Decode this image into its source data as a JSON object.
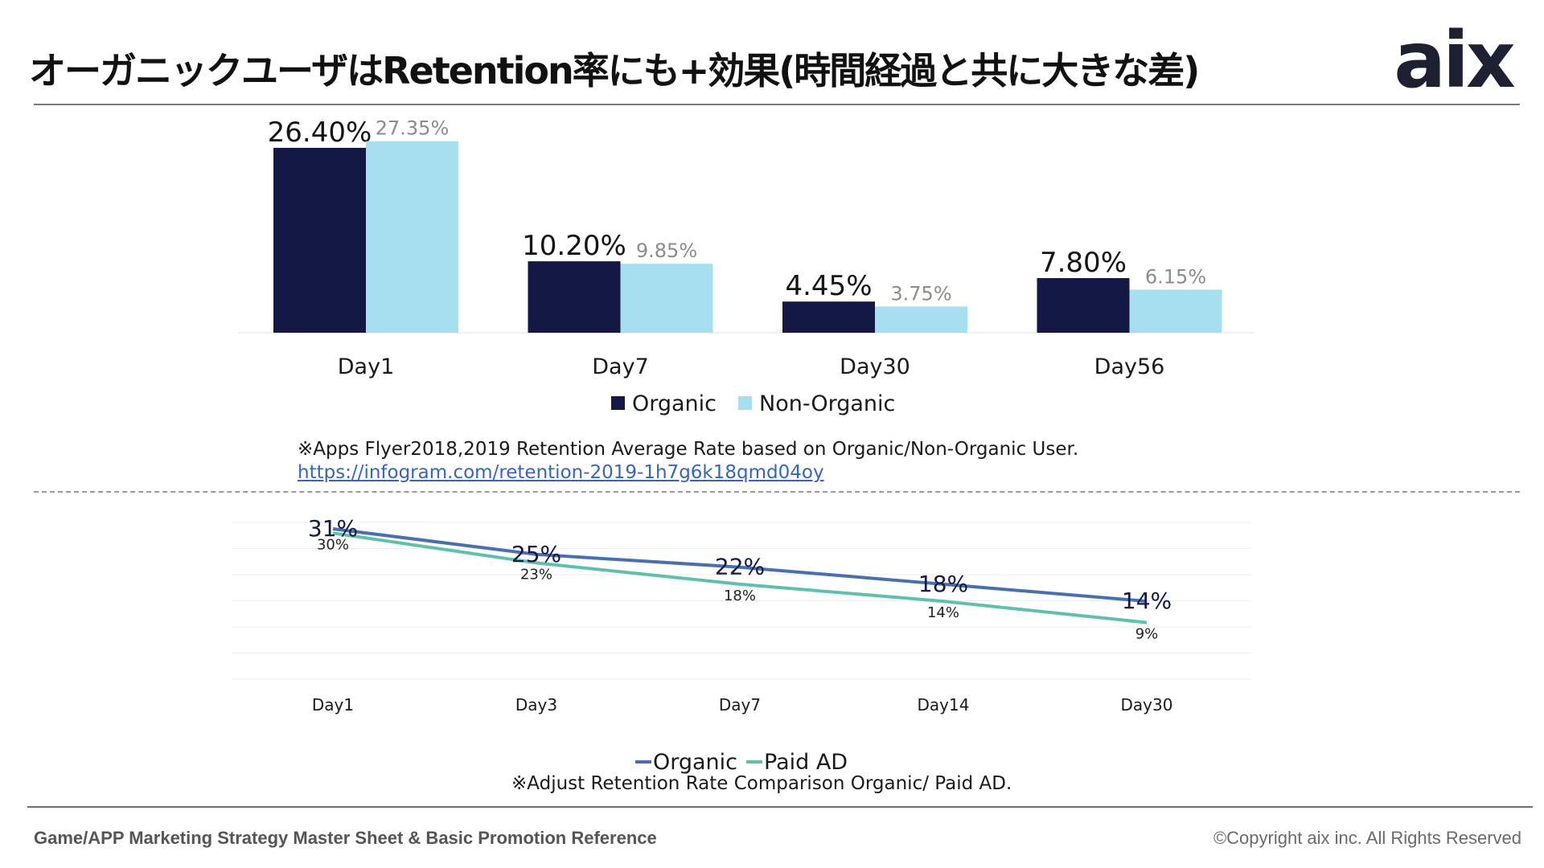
{
  "title": "オーガニックユーザはRetention率にも+効果(時間経過と共に大きな差)",
  "logo_text": "aix",
  "colors": {
    "organic_bar": "#141845",
    "non_organic_bar": "#a6dff0",
    "organic_line": "#4a6fb0",
    "paid_line": "#5fc0ae",
    "rule": "#7a7a7a"
  },
  "chart_data": [
    {
      "type": "bar",
      "categories": [
        "Day1",
        "Day7",
        "Day30",
        "Day56"
      ],
      "series": [
        {
          "name": "Organic",
          "values": [
            26.4,
            10.2,
            4.45,
            7.8
          ],
          "labels": [
            "26.40%",
            "10.20%",
            "4.45%",
            "7.80%"
          ]
        },
        {
          "name": "Non-Organic",
          "values": [
            27.35,
            9.85,
            3.75,
            6.15
          ],
          "labels": [
            "27.35%",
            "9.85%",
            "3.75%",
            "6.15%"
          ]
        }
      ],
      "ylim": [
        0,
        28
      ],
      "legend_position": "bottom",
      "grid": false
    },
    {
      "type": "line",
      "categories": [
        "Day1",
        "Day3",
        "Day7",
        "Day14",
        "Day30"
      ],
      "series": [
        {
          "name": "Organic",
          "values": [
            31,
            25,
            22,
            18,
            14
          ],
          "labels": [
            "31%",
            "25%",
            "22%",
            "18%",
            "14%"
          ]
        },
        {
          "name": "Paid AD",
          "values": [
            30,
            23,
            18,
            14,
            9
          ],
          "labels": [
            "30%",
            "23%",
            "18%",
            "14%",
            "9%"
          ]
        }
      ],
      "ylim": [
        0,
        35
      ],
      "legend_position": "bottom",
      "grid": true
    }
  ],
  "notes": {
    "bar_source": "※Apps Flyer2018,2019 Retention Average Rate based on Organic/Non-Organic User.",
    "bar_link": "https://infogram.com/retention-2019-1h7g6k18qmd04oy",
    "line_source": "※Adjust Retention Rate Comparison Organic/ Paid AD."
  },
  "footer": {
    "left": "Game/APP Marketing Strategy Master Sheet & Basic Promotion Reference",
    "right": "©Copyright aix inc. All Rights Reserved"
  }
}
